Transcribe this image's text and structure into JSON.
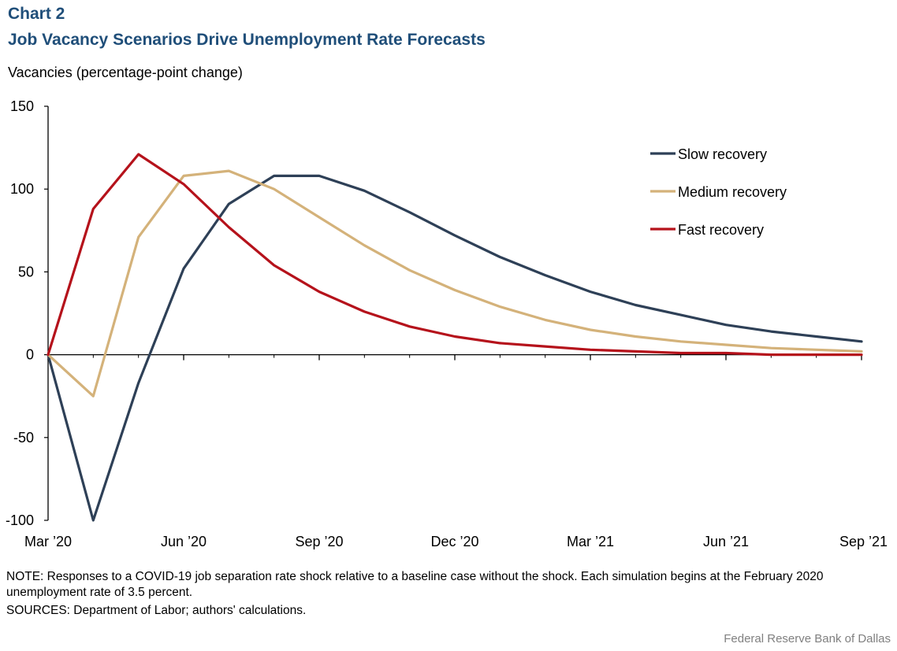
{
  "header": {
    "chart_label": "Chart 2",
    "title": "Job Vacancy Scenarios Drive Unemployment Rate Forecasts",
    "y_unit": "Vacancies (percentage-point change)"
  },
  "footer": {
    "note": "NOTE: Responses to a COVID-19 job separation rate shock relative to a baseline case without the shock. Each simulation begins at the February 2020 unemployment rate of 3.5 percent.",
    "sources": "SOURCES: Department of Labor; authors' calculations.",
    "credit": "Federal Reserve Bank of Dallas"
  },
  "chart_data": {
    "type": "line",
    "title": "Job Vacancy Scenarios Drive Unemployment Rate Forecasts",
    "xlabel": "",
    "ylabel": "Vacancies (percentage-point change)",
    "ylim": [
      -100,
      150
    ],
    "yticks": [
      150,
      100,
      50,
      0,
      -50,
      -100
    ],
    "x_tick_labels": [
      "Mar ’20",
      "Jun ’20",
      "Sep ’20",
      "Dec ’20",
      "Mar ’21",
      "Jun ’21",
      "Sep ’21"
    ],
    "x": [
      "Mar 2020",
      "Apr 2020",
      "May 2020",
      "Jun 2020",
      "Jul 2020",
      "Aug 2020",
      "Sep 2020",
      "Oct 2020",
      "Nov 2020",
      "Dec 2020",
      "Jan 2021",
      "Feb 2021",
      "Mar 2021",
      "Apr 2021",
      "May 2021",
      "Jun 2021",
      "Jul 2021",
      "Aug 2021",
      "Sep 2021"
    ],
    "legend_position": "top-right",
    "grid": false,
    "series": [
      {
        "name": "Slow recovery",
        "color": "#2e4057",
        "values": [
          0,
          -100,
          -17,
          52,
          91,
          108,
          108,
          99,
          86,
          72,
          59,
          48,
          38,
          30,
          24,
          18,
          14,
          11,
          8
        ]
      },
      {
        "name": "Medium recovery",
        "color": "#d4b27a",
        "values": [
          0,
          -25,
          71,
          108,
          111,
          100,
          83,
          66,
          51,
          39,
          29,
          21,
          15,
          11,
          8,
          6,
          4,
          3,
          2
        ]
      },
      {
        "name": "Fast recovery",
        "color": "#b5121b",
        "values": [
          0,
          88,
          121,
          103,
          77,
          54,
          38,
          26,
          17,
          11,
          7,
          5,
          3,
          2,
          1,
          1,
          0,
          0,
          0
        ]
      }
    ]
  }
}
